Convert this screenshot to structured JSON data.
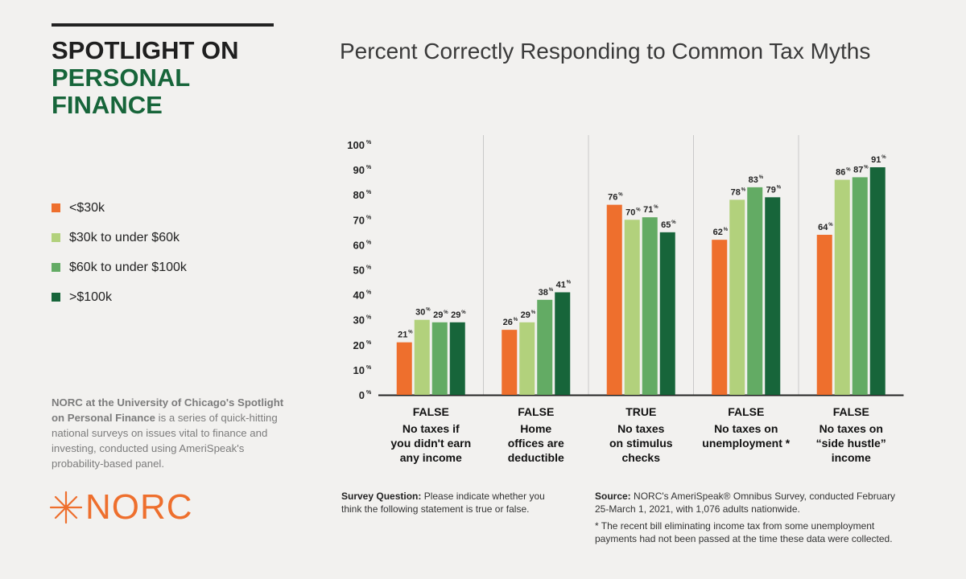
{
  "sidebar": {
    "title_line1": "SPOTLIGHT ON",
    "title_line2": "PERSONAL",
    "title_line3": "FINANCE",
    "about_bold": "NORC at the University of Chicago's Spotlight on Personal Finance",
    "about_rest": " is a series of quick-hitting national surveys on issues vital to finance and investing, conducted using AmeriSpeak's probability-based panel.",
    "logo_text": "NORC"
  },
  "legend": [
    {
      "label": "<$30k",
      "color": "#ee6f2d"
    },
    {
      "label": "$30k to under $60k",
      "color": "#b2d17c"
    },
    {
      "label": "$60k to under $100k",
      "color": "#63ab64"
    },
    {
      "label": ">$100k",
      "color": "#17653a"
    }
  ],
  "footer": {
    "survey_label": "Survey Question:",
    "survey_text": " Please indicate whether you think the following statement is true or false.",
    "source_label": "Source:",
    "source_text": " NORC's AmeriSpeak® Omnibus Survey, conducted February 25-March 1, 2021, with 1,076 adults nationwide.",
    "note": "* The recent bill eliminating income tax from some unemployment payments had not been passed at the time these data were collected."
  },
  "chart_data": {
    "type": "bar",
    "title": "Percent Correctly Responding to Common Tax Myths",
    "ylim": [
      0,
      100
    ],
    "yticks": [
      "0",
      "10",
      "20",
      "30",
      "40",
      "50",
      "60",
      "70",
      "80",
      "90",
      "100"
    ],
    "tick_suffix": "%",
    "categories": [
      {
        "answer": "FALSE",
        "lines": [
          "No taxes if",
          "you didn't earn",
          "any income"
        ]
      },
      {
        "answer": "FALSE",
        "lines": [
          "Home",
          "offices are",
          "deductible"
        ]
      },
      {
        "answer": "TRUE",
        "lines": [
          "No taxes",
          "on stimulus",
          "checks"
        ]
      },
      {
        "answer": "FALSE",
        "lines": [
          "No taxes on",
          "unemployment *"
        ]
      },
      {
        "answer": "FALSE",
        "lines": [
          "No taxes on",
          "“side hustle”",
          "income"
        ]
      }
    ],
    "series": [
      {
        "name": "<$30k",
        "color": "#ee6f2d",
        "values": [
          21,
          26,
          76,
          62,
          64
        ]
      },
      {
        "name": "$30k to under $60k",
        "color": "#b2d17c",
        "values": [
          30,
          29,
          70,
          78,
          86
        ]
      },
      {
        "name": "$60k to under $100k",
        "color": "#63ab64",
        "values": [
          29,
          38,
          71,
          83,
          87
        ]
      },
      {
        "name": ">$100k",
        "color": "#17653a",
        "values": [
          29,
          41,
          65,
          79,
          91
        ]
      }
    ]
  }
}
